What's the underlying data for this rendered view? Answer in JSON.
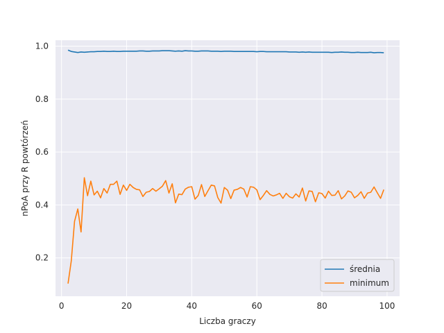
{
  "chart_data": {
    "type": "line",
    "title": "",
    "xlabel": "Liczba graczy",
    "ylabel": "nPoA przy R powtórzeń",
    "xlim": [
      -1.85,
      103.85
    ],
    "ylim": [
      0.0551,
      1.0224
    ],
    "xticks": [
      0,
      20,
      40,
      60,
      80,
      100
    ],
    "xtick_labels": [
      "0",
      "20",
      "40",
      "60",
      "80",
      "100"
    ],
    "yticks": [
      0.2,
      0.4,
      0.6,
      0.8,
      1.0
    ],
    "ytick_labels": [
      "0.2",
      "0.4",
      "0.6",
      "0.8",
      "1.0"
    ],
    "grid": true,
    "style": "seaborn-darkgrid",
    "legend_position": "lower right",
    "x": [
      2,
      3,
      4,
      5,
      6,
      7,
      8,
      9,
      10,
      11,
      12,
      13,
      14,
      15,
      16,
      17,
      18,
      19,
      20,
      21,
      22,
      23,
      24,
      25,
      26,
      27,
      28,
      29,
      30,
      31,
      32,
      33,
      34,
      35,
      36,
      37,
      38,
      39,
      40,
      41,
      42,
      43,
      44,
      45,
      46,
      47,
      48,
      49,
      50,
      51,
      52,
      53,
      54,
      55,
      56,
      57,
      58,
      59,
      60,
      61,
      62,
      63,
      64,
      65,
      66,
      67,
      68,
      69,
      70,
      71,
      72,
      73,
      74,
      75,
      76,
      77,
      78,
      79,
      80,
      81,
      82,
      83,
      84,
      85,
      86,
      87,
      88,
      89,
      90,
      91,
      92,
      93,
      94,
      95,
      96,
      97,
      98,
      99
    ],
    "series": [
      {
        "name": "średnia",
        "color": "#1f77b4",
        "values": [
          0.985,
          0.98,
          0.978,
          0.976,
          0.978,
          0.977,
          0.978,
          0.979,
          0.979,
          0.98,
          0.98,
          0.981,
          0.98,
          0.98,
          0.981,
          0.98,
          0.98,
          0.981,
          0.981,
          0.981,
          0.981,
          0.981,
          0.982,
          0.982,
          0.981,
          0.981,
          0.982,
          0.982,
          0.982,
          0.983,
          0.983,
          0.983,
          0.982,
          0.981,
          0.982,
          0.981,
          0.983,
          0.982,
          0.982,
          0.981,
          0.981,
          0.982,
          0.982,
          0.982,
          0.981,
          0.981,
          0.981,
          0.98,
          0.981,
          0.981,
          0.981,
          0.98,
          0.98,
          0.98,
          0.98,
          0.98,
          0.98,
          0.98,
          0.979,
          0.98,
          0.98,
          0.979,
          0.979,
          0.979,
          0.979,
          0.979,
          0.979,
          0.979,
          0.978,
          0.978,
          0.978,
          0.977,
          0.978,
          0.977,
          0.978,
          0.977,
          0.977,
          0.977,
          0.977,
          0.977,
          0.977,
          0.976,
          0.977,
          0.977,
          0.978,
          0.977,
          0.977,
          0.976,
          0.976,
          0.977,
          0.976,
          0.976,
          0.976,
          0.977,
          0.975,
          0.976,
          0.976,
          0.975
        ]
      },
      {
        "name": "minimum",
        "color": "#ff7f0e",
        "values": [
          0.103,
          0.189,
          0.338,
          0.385,
          0.298,
          0.503,
          0.435,
          0.49,
          0.438,
          0.452,
          0.427,
          0.462,
          0.445,
          0.478,
          0.478,
          0.49,
          0.44,
          0.475,
          0.455,
          0.478,
          0.466,
          0.459,
          0.457,
          0.432,
          0.448,
          0.451,
          0.462,
          0.452,
          0.461,
          0.471,
          0.492,
          0.445,
          0.48,
          0.408,
          0.441,
          0.439,
          0.46,
          0.467,
          0.469,
          0.422,
          0.436,
          0.477,
          0.432,
          0.454,
          0.475,
          0.472,
          0.428,
          0.407,
          0.466,
          0.456,
          0.424,
          0.456,
          0.459,
          0.466,
          0.46,
          0.43,
          0.469,
          0.467,
          0.457,
          0.42,
          0.436,
          0.454,
          0.44,
          0.434,
          0.438,
          0.444,
          0.425,
          0.444,
          0.431,
          0.426,
          0.442,
          0.43,
          0.464,
          0.415,
          0.453,
          0.451,
          0.412,
          0.446,
          0.443,
          0.426,
          0.452,
          0.436,
          0.437,
          0.454,
          0.423,
          0.434,
          0.453,
          0.448,
          0.427,
          0.436,
          0.45,
          0.425,
          0.445,
          0.448,
          0.468,
          0.446,
          0.425,
          0.458
        ]
      }
    ]
  }
}
